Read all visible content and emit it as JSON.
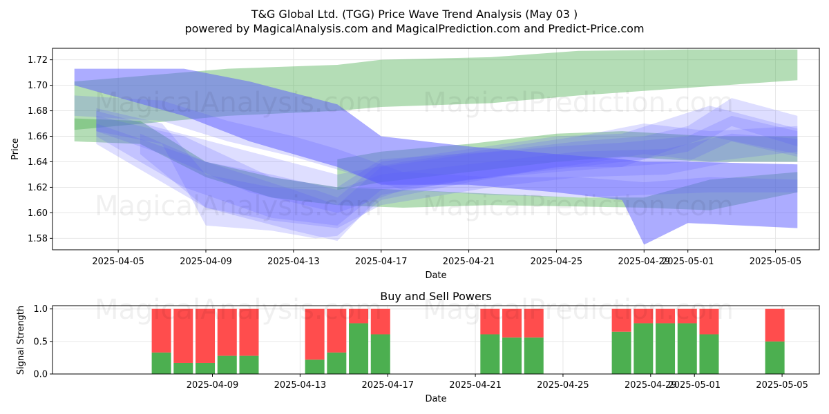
{
  "title": "T&G Global Ltd. (TGG) Price Wave Trend Analysis (May 03 )",
  "subtitle": "powered by MagicalAnalysis.com and MagicalPrediction.com and Predict-Price.com",
  "watermarks": [
    "MagicalAnalysis.com",
    "MagicalPrediction.com"
  ],
  "colors": {
    "buy": "#4caf50",
    "sell": "#ff4d4d",
    "wave_blue": "#5a5aff",
    "wave_green": "#4caf50",
    "grid": "#e6e6e6"
  },
  "chart_data": [
    {
      "type": "area",
      "title": "",
      "xlabel": "Date",
      "ylabel": "Price",
      "ylim": [
        1.571,
        1.729
      ],
      "xlim": [
        "2025-04-02",
        "2025-05-07"
      ],
      "grid": true,
      "x_ticks": [
        "2025-04-05",
        "2025-04-09",
        "2025-04-13",
        "2025-04-17",
        "2025-04-21",
        "2025-04-25",
        "2025-04-29",
        "2025-05-01",
        "2025-05-05"
      ],
      "y_ticks": [
        "1.58",
        "1.60",
        "1.62",
        "1.64",
        "1.66",
        "1.68",
        "1.70",
        "1.72"
      ],
      "series": [
        {
          "color": "green",
          "x": [
            "2025-04-03",
            "2025-04-10",
            "2025-04-15",
            "2025-04-17",
            "2025-04-22",
            "2025-04-26",
            "2025-05-01",
            "2025-05-06"
          ],
          "upper": [
            1.703,
            1.713,
            1.716,
            1.72,
            1.722,
            1.727,
            1.728,
            1.728
          ],
          "lower": [
            1.665,
            1.676,
            1.68,
            1.683,
            1.686,
            1.692,
            1.698,
            1.704
          ]
        },
        {
          "color": "green",
          "x": [
            "2025-04-03",
            "2025-04-06",
            "2025-04-09",
            "2025-04-12",
            "2025-04-15",
            "2025-04-18",
            "2025-04-22",
            "2025-04-26",
            "2025-04-29",
            "2025-05-02",
            "2025-05-06"
          ],
          "upper": [
            1.674,
            1.672,
            1.64,
            1.628,
            1.62,
            1.618,
            1.615,
            1.612,
            1.612,
            1.626,
            1.632
          ],
          "lower": [
            1.656,
            1.654,
            1.628,
            1.612,
            1.606,
            1.604,
            1.606,
            1.605,
            1.604,
            1.602,
            1.616
          ]
        },
        {
          "color": "green",
          "x": [
            "2025-04-15",
            "2025-04-17",
            "2025-04-21",
            "2025-04-25",
            "2025-04-28",
            "2025-04-30",
            "2025-05-02",
            "2025-05-06"
          ],
          "upper": [
            1.642,
            1.648,
            1.654,
            1.662,
            1.664,
            1.662,
            1.66,
            1.66
          ],
          "lower": [
            1.618,
            1.624,
            1.632,
            1.64,
            1.644,
            1.642,
            1.64,
            1.64
          ]
        },
        {
          "color": "blue",
          "x": [
            "2025-04-03",
            "2025-04-08",
            "2025-04-11",
            "2025-04-15",
            "2025-04-17",
            "2025-04-21",
            "2025-04-25",
            "2025-04-28",
            "2025-04-29",
            "2025-05-01",
            "2025-05-06"
          ],
          "upper": [
            1.713,
            1.713,
            1.703,
            1.685,
            1.66,
            1.652,
            1.646,
            1.642,
            1.64,
            1.64,
            1.638
          ],
          "lower": [
            1.7,
            1.676,
            1.656,
            1.636,
            1.622,
            1.622,
            1.616,
            1.61,
            1.575,
            1.592,
            1.588
          ]
        },
        {
          "color": "blue",
          "x": [
            "2025-04-03",
            "2025-04-07",
            "2025-04-10",
            "2025-04-13",
            "2025-04-15",
            "2025-04-18",
            "2025-04-22",
            "2025-04-26",
            "2025-04-29",
            "2025-05-02",
            "2025-05-06"
          ],
          "upper": [
            1.692,
            1.688,
            1.672,
            1.66,
            1.65,
            1.632,
            1.628,
            1.628,
            1.624,
            1.628,
            1.626
          ],
          "lower": [
            1.676,
            1.672,
            1.656,
            1.644,
            1.634,
            1.618,
            1.614,
            1.612,
            1.614,
            1.616,
            1.616
          ]
        },
        {
          "color": "blue",
          "x": [
            "2025-04-04",
            "2025-04-07",
            "2025-04-09",
            "2025-04-12",
            "2025-04-14",
            "2025-04-15",
            "2025-04-17",
            "2025-04-21",
            "2025-04-25",
            "2025-04-28",
            "2025-05-02",
            "2025-05-06"
          ],
          "upper": [
            1.682,
            1.67,
            1.63,
            1.62,
            1.618,
            1.612,
            1.64,
            1.65,
            1.66,
            1.662,
            1.684,
            1.666
          ],
          "lower": [
            1.664,
            1.654,
            1.59,
            1.586,
            1.58,
            1.582,
            1.61,
            1.624,
            1.636,
            1.636,
            1.66,
            1.646
          ]
        },
        {
          "color": "blue",
          "x": [
            "2025-04-04",
            "2025-04-08",
            "2025-04-12",
            "2025-04-15",
            "2025-04-17",
            "2025-04-22",
            "2025-04-26",
            "2025-04-29",
            "2025-05-01",
            "2025-05-03",
            "2025-05-06"
          ],
          "upper": [
            1.676,
            1.66,
            1.628,
            1.62,
            1.642,
            1.648,
            1.656,
            1.66,
            1.668,
            1.69,
            1.676
          ],
          "lower": [
            1.66,
            1.62,
            1.596,
            1.59,
            1.618,
            1.628,
            1.636,
            1.642,
            1.648,
            1.668,
            1.652
          ]
        },
        {
          "color": "blue",
          "x": [
            "2025-04-04",
            "2025-04-09",
            "2025-04-13",
            "2025-04-15",
            "2025-04-17",
            "2025-04-21",
            "2025-04-25",
            "2025-04-28",
            "2025-05-01",
            "2025-05-03",
            "2025-05-06"
          ],
          "upper": [
            1.67,
            1.64,
            1.618,
            1.606,
            1.636,
            1.646,
            1.652,
            1.655,
            1.66,
            1.676,
            1.664
          ],
          "lower": [
            1.654,
            1.604,
            1.586,
            1.578,
            1.614,
            1.626,
            1.632,
            1.636,
            1.64,
            1.656,
            1.644
          ]
        },
        {
          "color": "blue",
          "x": [
            "2025-04-06",
            "2025-04-09",
            "2025-04-12",
            "2025-04-15",
            "2025-04-17",
            "2025-04-22",
            "2025-04-26",
            "2025-04-30",
            "2025-05-03",
            "2025-05-06"
          ],
          "upper": [
            1.662,
            1.64,
            1.63,
            1.618,
            1.63,
            1.64,
            1.648,
            1.65,
            1.662,
            1.658
          ],
          "lower": [
            1.646,
            1.604,
            1.594,
            1.588,
            1.606,
            1.62,
            1.628,
            1.63,
            1.64,
            1.64
          ]
        },
        {
          "color": "blue",
          "x": [
            "2025-04-04",
            "2025-04-07",
            "2025-04-11",
            "2025-04-15",
            "2025-04-18",
            "2025-04-22",
            "2025-04-26",
            "2025-04-29",
            "2025-05-02",
            "2025-05-06"
          ],
          "upper": [
            1.68,
            1.666,
            1.648,
            1.63,
            1.64,
            1.65,
            1.66,
            1.67,
            1.664,
            1.668
          ],
          "lower": [
            1.664,
            1.646,
            1.616,
            1.6,
            1.618,
            1.628,
            1.638,
            1.646,
            1.64,
            1.648
          ]
        }
      ]
    },
    {
      "type": "bar",
      "title": "Buy and Sell Powers",
      "xlabel": "Date",
      "ylabel": "Signal Strength",
      "ylim": [
        0,
        1.05
      ],
      "xlim": [
        "2025-04-02",
        "2025-05-07"
      ],
      "grid": true,
      "x_ticks": [
        "2025-04-09",
        "2025-04-13",
        "2025-04-17",
        "2025-04-21",
        "2025-04-25",
        "2025-04-29",
        "2025-05-01",
        "2025-05-05"
      ],
      "y_ticks": [
        "0.0",
        "0.5",
        "1.0"
      ],
      "categories": [
        "2025-04-07",
        "2025-04-08",
        "2025-04-09",
        "2025-04-10",
        "2025-04-11",
        "2025-04-14",
        "2025-04-15",
        "2025-04-16",
        "2025-04-17",
        "2025-04-22",
        "2025-04-23",
        "2025-04-24",
        "2025-04-28",
        "2025-04-29",
        "2025-04-30",
        "2025-05-01",
        "2025-05-02",
        "2025-05-05"
      ],
      "series": [
        {
          "name": "Buy",
          "values": [
            0.33,
            0.17,
            0.17,
            0.28,
            0.28,
            0.22,
            0.33,
            0.78,
            0.61,
            0.61,
            0.56,
            0.56,
            0.65,
            0.78,
            0.78,
            0.78,
            0.61,
            0.5
          ]
        },
        {
          "name": "Sell",
          "values": [
            0.67,
            0.83,
            0.83,
            0.72,
            0.72,
            0.78,
            0.67,
            0.22,
            0.39,
            0.39,
            0.44,
            0.44,
            0.35,
            0.22,
            0.22,
            0.22,
            0.39,
            0.5
          ]
        }
      ]
    }
  ]
}
